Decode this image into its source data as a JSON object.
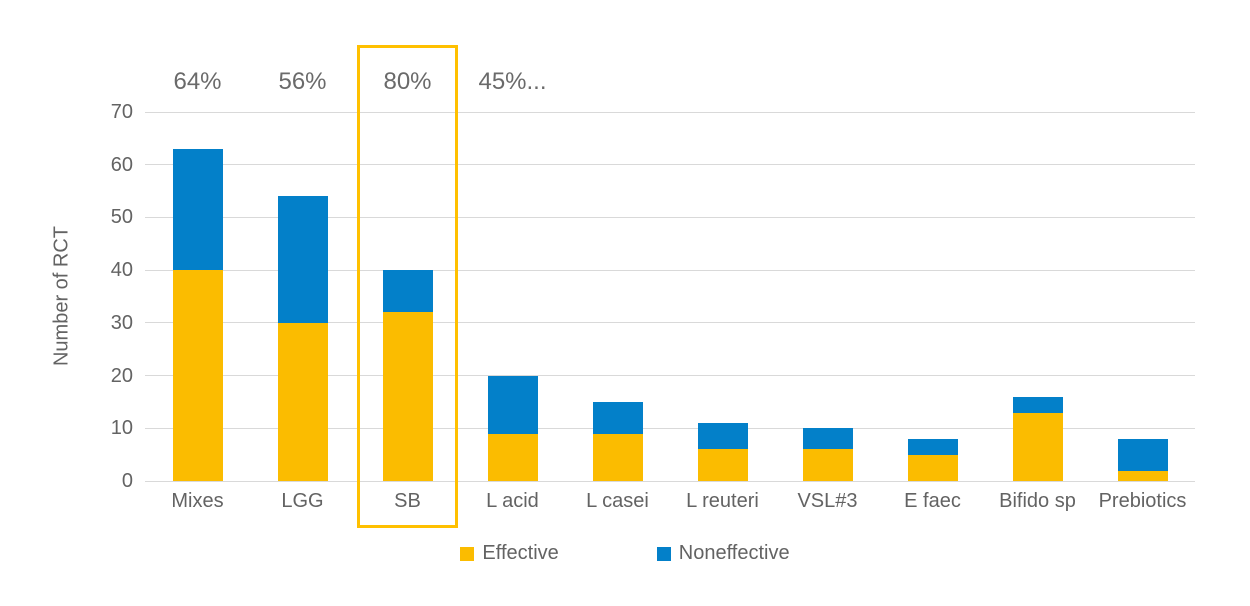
{
  "chart_data": {
    "type": "bar",
    "stacked": true,
    "title": "",
    "categories": [
      "Mixes",
      "LGG",
      "SB",
      "L acid",
      "L casei",
      "L reuteri",
      "VSL#3",
      "E faec",
      "Bifido sp",
      "Prebiotics"
    ],
    "series": [
      {
        "name": "Effective",
        "color": "#FBBC00",
        "values": [
          40,
          30,
          32,
          9,
          9,
          6,
          6,
          5,
          13,
          2
        ]
      },
      {
        "name": "Noneffective",
        "color": "#0380C9",
        "values": [
          23,
          24,
          8,
          11,
          6,
          5,
          4,
          3,
          3,
          6
        ]
      }
    ],
    "totals": [
      63,
      54,
      40,
      20,
      15,
      11,
      10,
      8,
      16,
      8
    ],
    "xlabel": "",
    "ylabel": "Number of RCT",
    "ylim": [
      0,
      70
    ],
    "yticks": [
      0,
      10,
      20,
      30,
      40,
      50,
      60,
      70
    ],
    "grid": "horizontal",
    "gridline_color": "#D9D9D9",
    "text_color": "#636363",
    "legend_position": "bottom",
    "percent_labels": [
      {
        "category": "Mixes",
        "text": "64%"
      },
      {
        "category": "LGG",
        "text": "56%"
      },
      {
        "category": "SB",
        "text": "80%"
      },
      {
        "category": "L acid",
        "text": "45%..."
      }
    ],
    "highlight": {
      "category": "SB",
      "border_color": "#FFC000"
    }
  }
}
